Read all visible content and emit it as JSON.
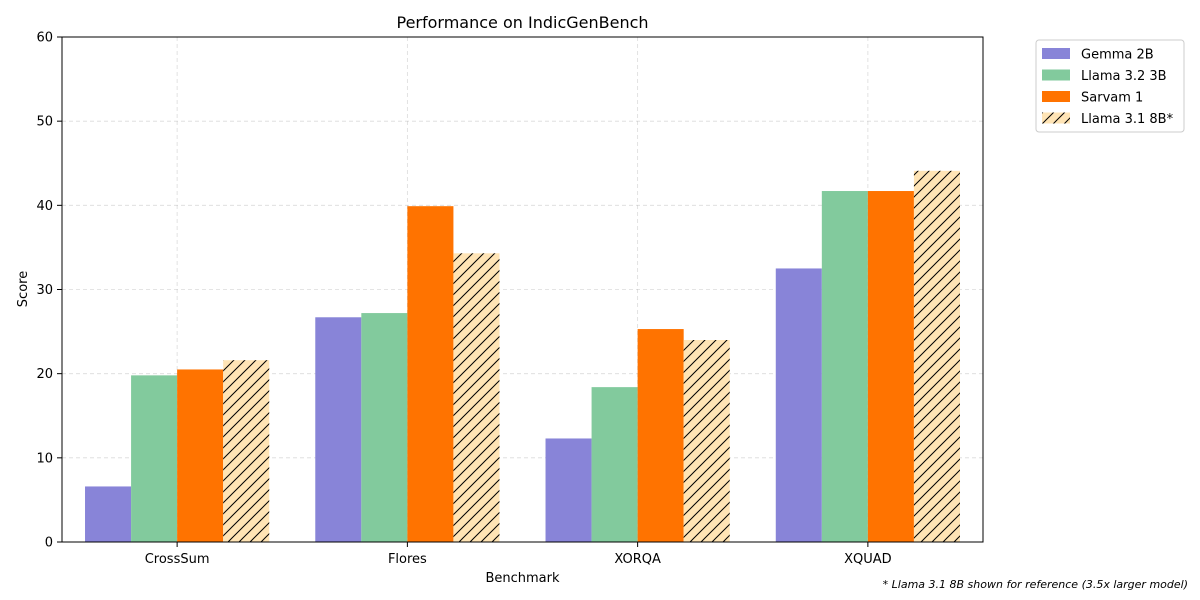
{
  "chart_data": {
    "type": "bar",
    "title": "Performance on IndicGenBench",
    "xlabel": "Benchmark",
    "ylabel": "Score",
    "ylim": [
      0,
      60
    ],
    "yticks": [
      0,
      10,
      20,
      30,
      40,
      50,
      60
    ],
    "grid": true,
    "legend_position": "outside-top-right",
    "categories": [
      "CrossSum",
      "Flores",
      "XORQA",
      "XQUAD"
    ],
    "series": [
      {
        "name": "Gemma 2B",
        "color": "#8884d8",
        "hatch": false,
        "values": [
          6.6,
          26.7,
          12.3,
          32.5
        ]
      },
      {
        "name": "Llama 3.2 3B",
        "color": "#82ca9d",
        "hatch": false,
        "values": [
          19.8,
          27.2,
          18.4,
          41.7
        ]
      },
      {
        "name": "Sarvam 1",
        "color": "#ff7300",
        "hatch": false,
        "values": [
          20.5,
          39.9,
          25.3,
          41.7
        ]
      },
      {
        "name": "Llama 3.1 8B*",
        "color": "#ffe4b5",
        "hatch": true,
        "values": [
          21.6,
          34.3,
          24.0,
          44.1
        ]
      }
    ],
    "footnote": "* Llama 3.1 8B shown for reference (3.5x larger model)"
  }
}
